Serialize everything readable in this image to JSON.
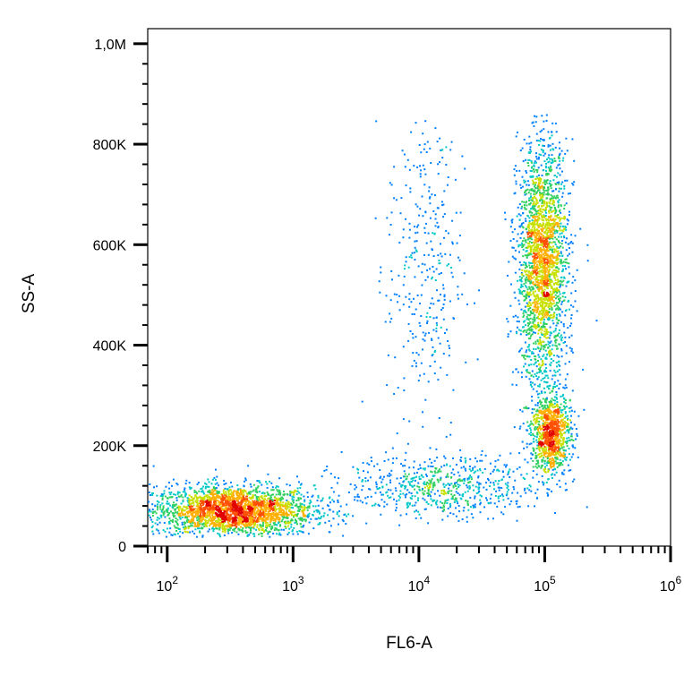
{
  "chart_data": {
    "type": "scatter",
    "title": "",
    "xlabel": "FL6-A",
    "ylabel": "SS-A",
    "x_scale": "log",
    "y_scale": "linear",
    "xlim": [
      70,
      1000000
    ],
    "ylim": [
      0,
      1030000
    ],
    "x_ticks": [
      {
        "value": 100,
        "base": "10",
        "exp": "2"
      },
      {
        "value": 1000,
        "base": "10",
        "exp": "3"
      },
      {
        "value": 10000,
        "base": "10",
        "exp": "4"
      },
      {
        "value": 100000,
        "base": "10",
        "exp": "5"
      },
      {
        "value": 1000000,
        "base": "10",
        "exp": "6"
      }
    ],
    "y_ticks": [
      {
        "value": 0,
        "label": "0"
      },
      {
        "value": 200000,
        "label": "200K"
      },
      {
        "value": 400000,
        "label": "400K"
      },
      {
        "value": 600000,
        "label": "600K"
      },
      {
        "value": 800000,
        "label": "800K"
      },
      {
        "value": 1000000,
        "label": "1,0M"
      }
    ],
    "grid": false,
    "legend": "none",
    "colormap": [
      "#1f1fcc",
      "#0080ff",
      "#00c8c8",
      "#30d060",
      "#c8e000",
      "#ffb000",
      "#ff5000",
      "#e00000"
    ],
    "populations": [
      {
        "x_center": 330,
        "y_center": 72000,
        "log_x_spread": 0.32,
        "y_spread": 25000,
        "count": 2600,
        "density": "high"
      },
      {
        "x_center": 95000,
        "y_center": 560000,
        "log_x_spread": 0.1,
        "y_spread": 120000,
        "count": 2400,
        "density": "high"
      },
      {
        "x_center": 110000,
        "y_center": 225000,
        "log_x_spread": 0.08,
        "y_spread": 40000,
        "count": 1000,
        "density": "high"
      },
      {
        "x_center": 15000,
        "y_center": 120000,
        "log_x_spread": 0.38,
        "y_spread": 30000,
        "count": 650,
        "density": "medium"
      },
      {
        "x_center": 11000,
        "y_center": 560000,
        "log_x_spread": 0.15,
        "y_spread": 180000,
        "count": 350,
        "density": "low"
      }
    ]
  }
}
